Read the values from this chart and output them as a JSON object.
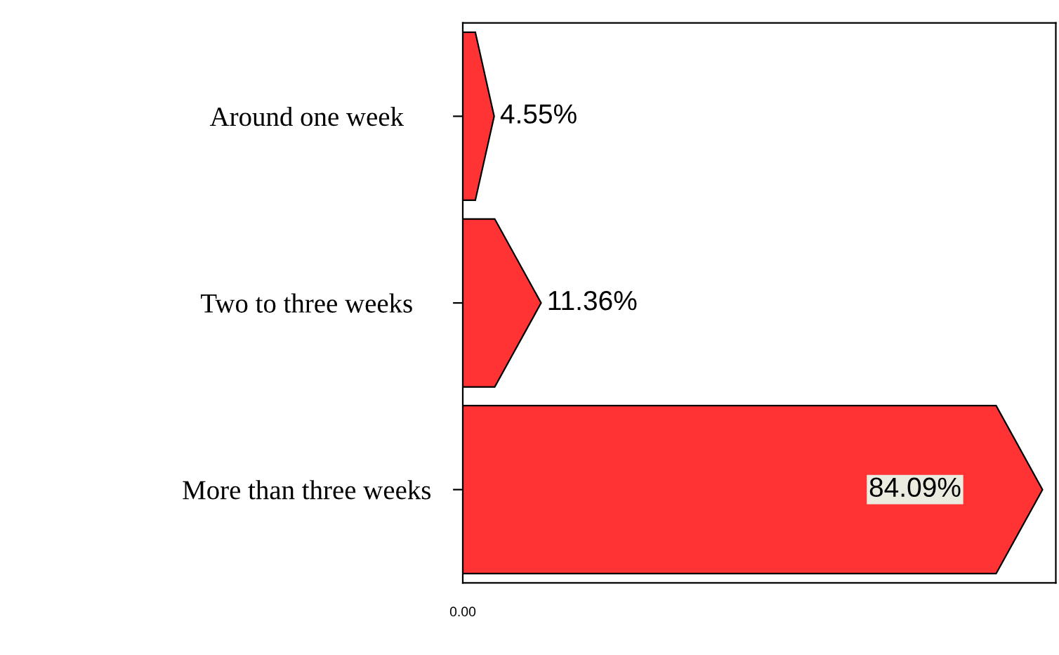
{
  "chart_data": {
    "type": "bar",
    "orientation": "horizontal",
    "categories": [
      "Around one week",
      "Two to three weeks",
      "More than three weeks"
    ],
    "values": [
      4.55,
      11.36,
      84.09
    ],
    "value_labels": [
      "4.55%",
      "11.36%",
      "84.09%"
    ],
    "color": "#ff3333",
    "annotations": [
      "0.00"
    ],
    "grid": false,
    "legend": false
  }
}
